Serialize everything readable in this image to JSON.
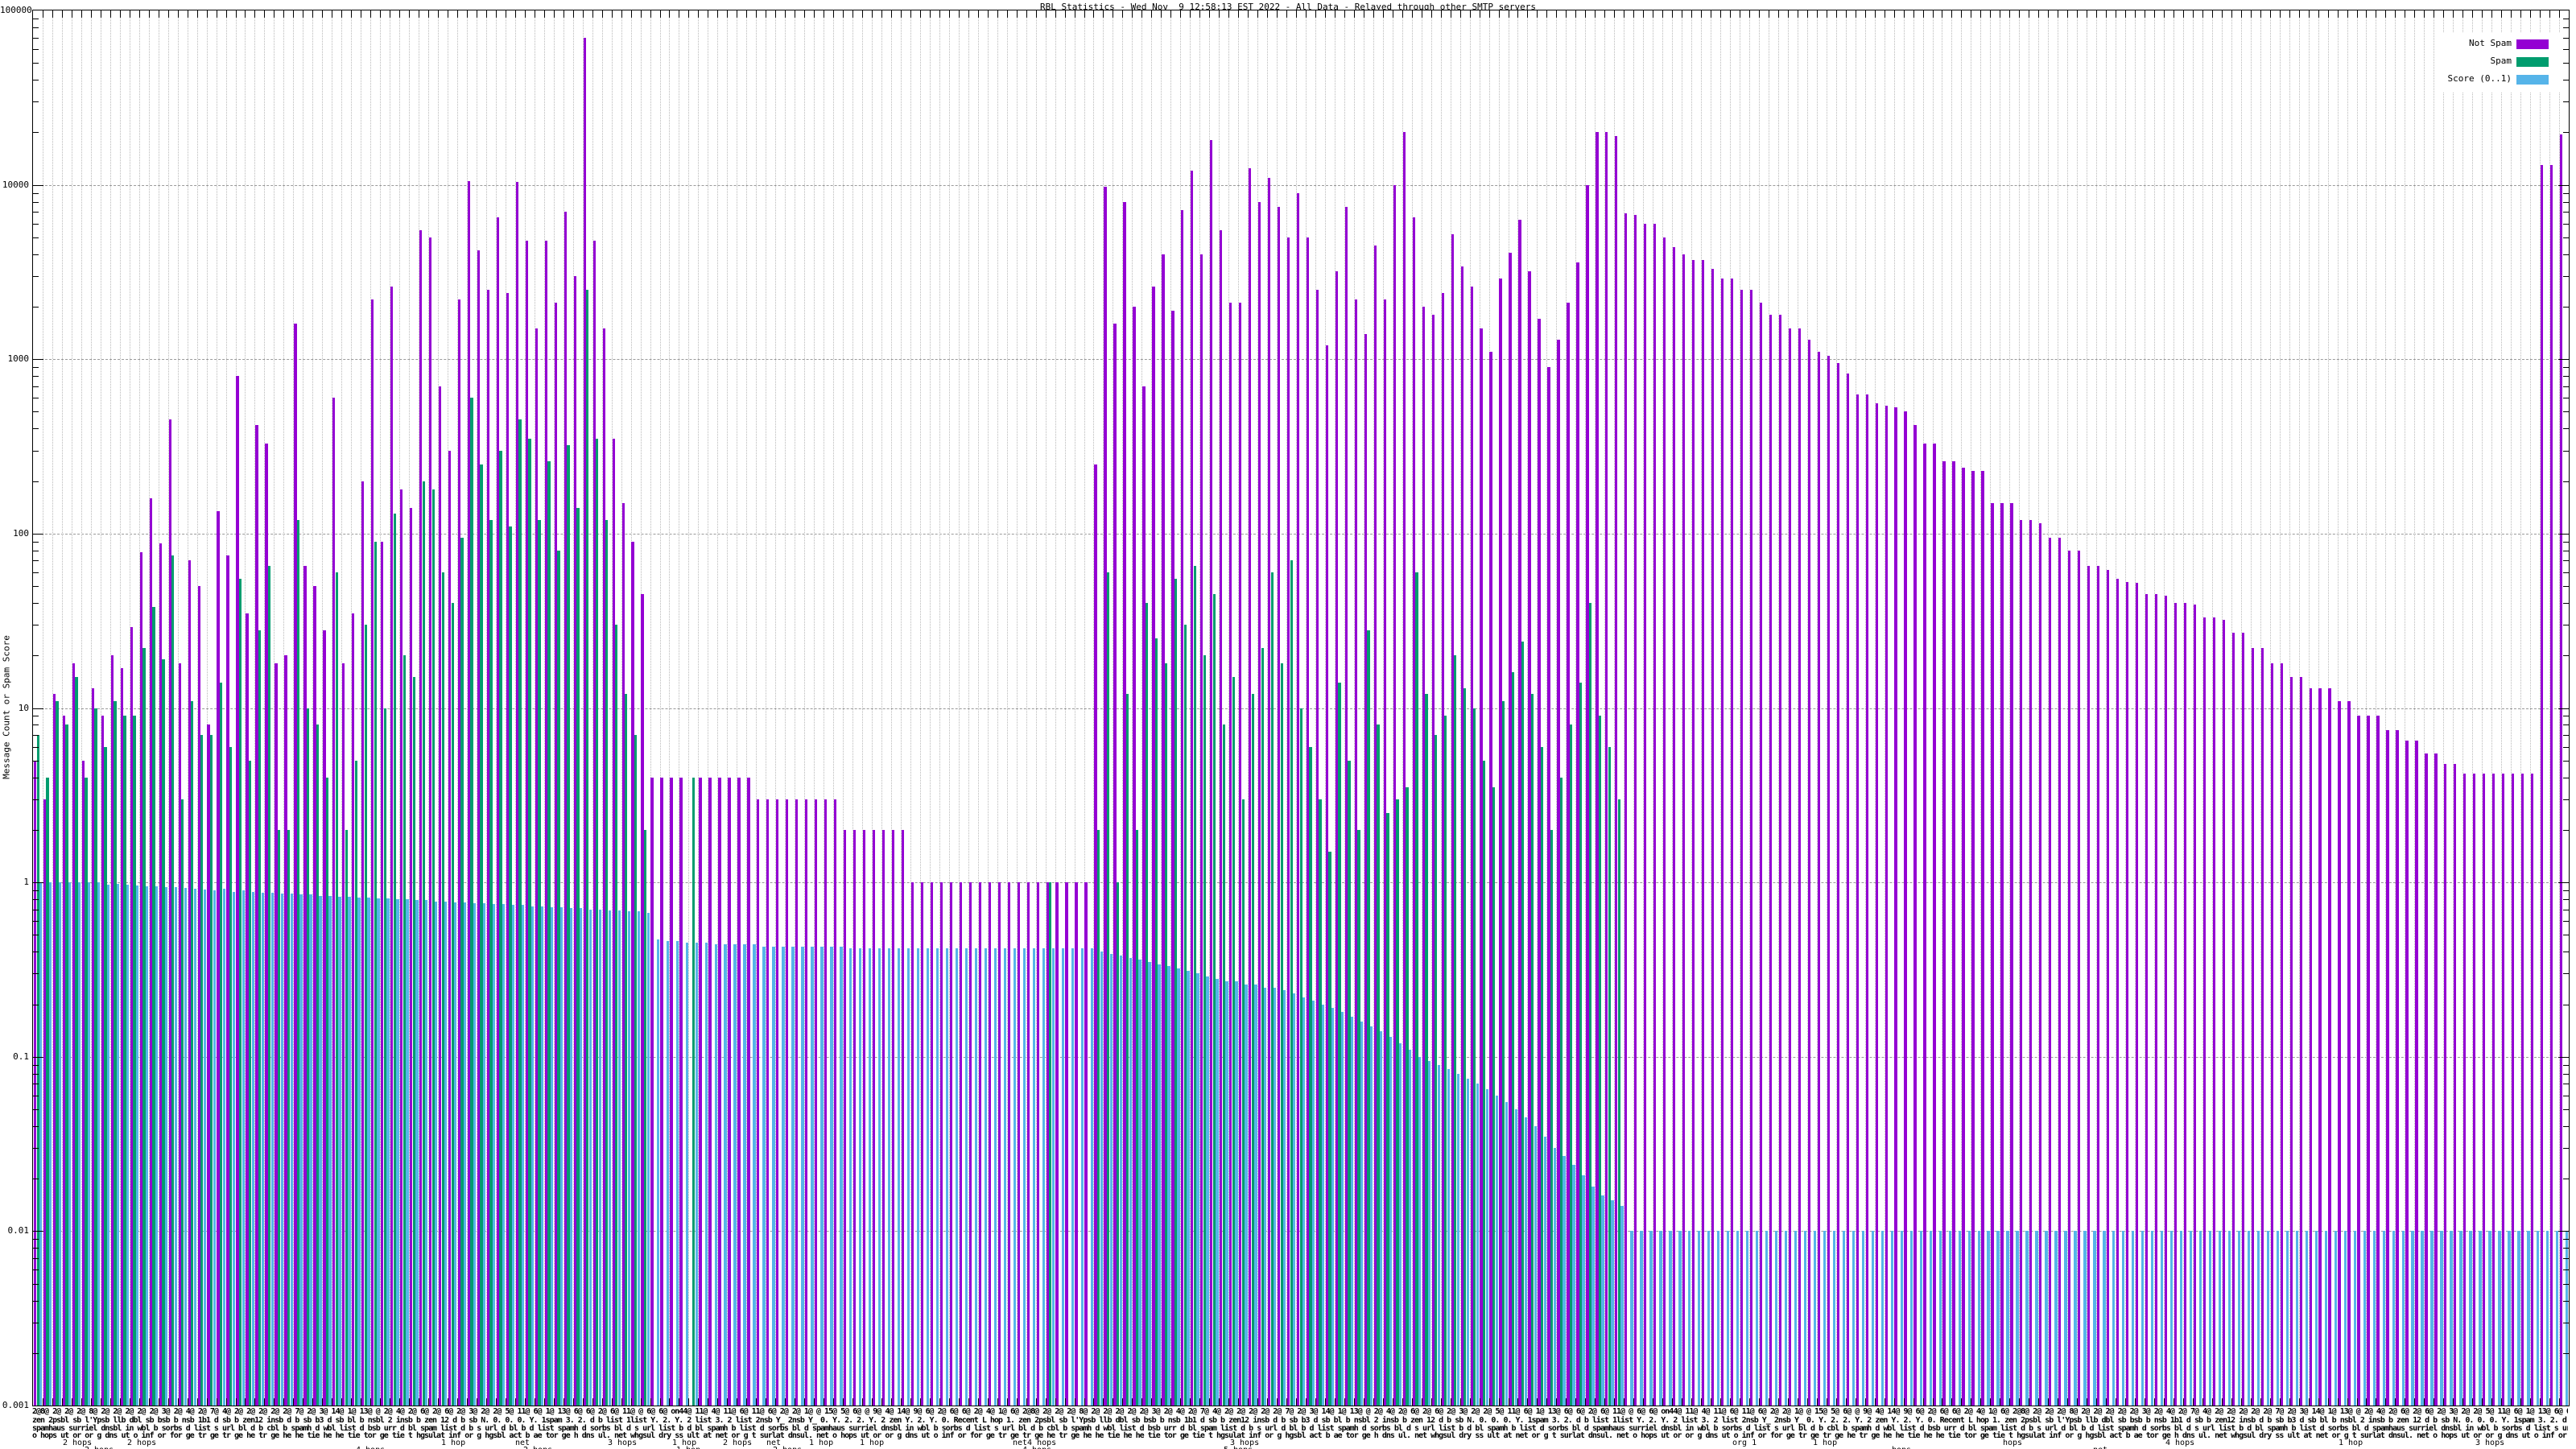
{
  "title": "RBL Statistics - Wed Nov  9 12:58:13 EST 2022 - All Data - Relayed through other SMTP servers",
  "y_axis": {
    "label": "Message Count or Spam Score",
    "ticks": [
      "100000",
      "10000",
      "1000",
      "100",
      "10",
      "1",
      "0.1",
      "0.01",
      "0.001"
    ],
    "min": 0.001,
    "max": 100000
  },
  "legend": {
    "items": [
      {
        "label": "Not Spam",
        "color": "#9400d3"
      },
      {
        "label": "Spam",
        "color": "#009c6e"
      },
      {
        "label": "Score (0..1)",
        "color": "#56b4e9"
      }
    ]
  },
  "x_axis": {
    "tick_label_rows": [
      "2@8@ 2@ 2@ 2@ 8@ 2@ 2@ 2@ 2@ 2@ 3@ 2@ 4@ 2@ 7@ 4@ 2@ 2@ 2@ 2@ 2@ 7@ 2@ 3@ 14@ 1@ 13@ @ 2@ 4@ 2@ 6@ 2@ 6@ 2@ 3@ 2@ 2@ 5@ 11@ 6@ 1@ 13@ 6@ 6@ 2@ 6@ 11@ @ 6@ 6@ on44@ 11@ 4@ 11@ 6@ 11@ 6@ 2@ 2@ 1@ @ 15@ 5@ 6@ @ 9@ 4@ 14@ 9@ 6@ 2@ 6@ 6@ 2@ 4@ 1@ 6@ ",
      "zen 2psbl sb l'Ypsb llb dbl sb bsb b nsb 1b1 d sb b zen12 insb d b sb b3 d sb bl b nsbl 2 insb b zen 12 d b sb N. 0. 0. 0. Y. 1spam 3. 2. d b list 1list Y. 2. Y. 2 list 3. 2 list 2nsb Y_ 2nsb Y_ 0. Y. 2. 2. Y. 2 zen Y. 2. Y. 0. Recent L hop 1. ",
      "spamhaus surriel dnsbl in wbl b sorbs d list s url bl d b cbl b spamh d wbl list d bsb urr d bl spam list d b s url d bl b d list spamh d sorbs bl d s url list b d bl spamh b list d sorbs bl d ",
      "o hops ut or or g dns ut o inf or for ge tr ge tr ge he tr ge he he tie he he tie tor ge tie t hgsulat inf or g hgsbl act b ae tor ge h dns ul. net whgsul dry ss ult at net or g t surlat dnsul. net "
    ],
    "hop_labels_row1": [
      {
        "text": "2 hops",
        "x": 78
      },
      {
        "text": "2 hops",
        "x": 158
      },
      {
        "text": "1 hop",
        "x": 548
      },
      {
        "text": "net",
        "x": 640
      },
      {
        "text": "3 hops",
        "x": 755
      },
      {
        "text": "1 hop",
        "x": 835
      },
      {
        "text": "2 hops",
        "x": 898
      },
      {
        "text": "net",
        "x": 952
      },
      {
        "text": "1 hop",
        "x": 1005
      },
      {
        "text": "1 hop",
        "x": 1068
      },
      {
        "text": "net4 hops",
        "x": 1258
      },
      {
        "text": "3 hops",
        "x": 1528
      },
      {
        "text": "org 1",
        "x": 2152
      },
      {
        "text": "1 hop",
        "x": 2252
      },
      {
        "text": "hops",
        "x": 2488
      },
      {
        "text": "4 hops",
        "x": 2690
      },
      {
        "text": "1 hop",
        "x": 2905
      },
      {
        "text": "3 hops",
        "x": 3075
      }
    ],
    "hop_labels_row2": [
      {
        "text": "2 hops",
        "x": 105
      },
      {
        "text": "4 hops",
        "x": 442
      },
      {
        "text": "2 hops",
        "x": 650
      },
      {
        "text": "1 hop",
        "x": 840
      },
      {
        "text": "2 hops",
        "x": 960
      },
      {
        "text": "4 hops",
        "x": 1270
      },
      {
        "text": "5 hops",
        "x": 1520
      },
      {
        "text": "hops",
        "x": 2350
      },
      {
        "text": "net",
        "x": 2600
      }
    ]
  },
  "chart_data": {
    "type": "bar",
    "log_scale": true,
    "ylim": [
      0.001,
      100000
    ],
    "ylabel": "Message Count or Spam Score",
    "title": "RBL Statistics - Wed Nov  9 12:58:13 EST 2022 - All Data - Relayed through other SMTP servers",
    "grid": true,
    "legend_position": "top-right",
    "group_count": 263,
    "series": [
      {
        "name": "Not Spam",
        "color": "#9400d3",
        "values": [
          5,
          3,
          12,
          9,
          18,
          5,
          13,
          9,
          20,
          17,
          29,
          78,
          160,
          88,
          450,
          18,
          70,
          50,
          8,
          135,
          75,
          800,
          35,
          420,
          330,
          18,
          20,
          1600,
          65,
          50,
          28,
          600,
          18,
          35,
          200,
          2200,
          90,
          2600,
          180,
          140,
          5500,
          5000,
          700,
          300,
          2200,
          10500,
          4200,
          2500,
          6500,
          2400,
          10400,
          4800,
          1500,
          4800,
          2100,
          7000,
          3000,
          70000,
          4800,
          1500,
          350,
          150,
          90,
          45,
          4,
          4,
          4,
          4,
          null,
          4,
          4,
          4,
          4,
          4,
          4,
          3,
          3,
          3,
          3,
          3,
          3,
          3,
          3,
          3,
          2,
          2,
          2,
          2,
          2,
          2,
          2,
          1,
          1,
          1,
          1,
          1,
          1,
          1,
          1,
          1,
          1,
          1,
          1,
          1,
          1,
          1,
          1,
          1,
          1,
          1,
          250,
          9800,
          1600,
          8000,
          2000,
          700,
          2600,
          4000,
          1900,
          7200,
          12000,
          4000,
          18000,
          5500,
          2100,
          2100,
          12500,
          8000,
          11000,
          7500,
          5000,
          9000,
          5000,
          2500,
          1200,
          3200,
          7500,
          2200,
          1400,
          4500,
          2200,
          10000,
          20000,
          6500,
          2000,
          1800,
          2400,
          5200,
          3400,
          2600,
          1500,
          1100,
          2900,
          4100,
          6300,
          3200,
          1700,
          900,
          1300,
          2100,
          3600,
          10000,
          20000,
          20000,
          19000,
          6900,
          6700,
          6000,
          6000,
          5000,
          4400,
          4000,
          3700,
          3700,
          3300,
          2900,
          2900,
          2500,
          2500,
          2100,
          1800,
          1800,
          1500,
          1500,
          1300,
          1100,
          1050,
          950,
          830,
          630,
          630,
          560,
          540,
          530,
          500,
          420,
          330,
          330,
          260,
          260,
          240,
          230,
          230,
          150,
          150,
          150,
          120,
          120,
          115,
          95,
          95,
          80,
          80,
          65,
          65,
          62,
          55,
          53,
          52,
          45,
          45,
          44,
          40,
          40,
          39,
          33,
          33,
          32,
          27,
          27,
          22,
          22,
          18,
          18,
          15,
          15,
          13,
          13,
          13,
          11,
          11,
          9,
          9,
          9,
          7.5,
          7.5,
          6.5,
          6.5,
          5.5,
          5.5,
          4.8,
          4.8,
          4.2,
          4.2,
          4.2,
          4.2,
          4.2,
          4.2,
          4.2,
          4.2,
          13000,
          13000,
          19500
        ]
      },
      {
        "name": "Spam",
        "color": "#009c6e",
        "values": [
          7,
          4,
          11,
          8,
          15,
          4,
          10,
          6,
          11,
          9,
          9,
          22,
          38,
          19,
          75,
          3,
          11,
          7,
          7,
          14,
          6,
          55,
          5,
          28,
          65,
          2,
          2,
          120,
          10,
          8,
          4,
          60,
          2,
          5,
          30,
          90,
          10,
          130,
          20,
          15,
          200,
          180,
          60,
          40,
          95,
          600,
          250,
          120,
          300,
          110,
          450,
          350,
          120,
          260,
          80,
          320,
          140,
          2500,
          350,
          120,
          30,
          12,
          7,
          2,
          null,
          null,
          null,
          null,
          4,
          null,
          null,
          null,
          null,
          null,
          null,
          null,
          null,
          null,
          null,
          null,
          null,
          null,
          null,
          null,
          null,
          null,
          null,
          null,
          null,
          null,
          null,
          null,
          null,
          null,
          null,
          null,
          null,
          null,
          null,
          null,
          null,
          null,
          null,
          null,
          null,
          1,
          null,
          null,
          null,
          null,
          2,
          60,
          1,
          12,
          2,
          40,
          25,
          18,
          55,
          30,
          65,
          20,
          45,
          8,
          15,
          3,
          12,
          22,
          60,
          18,
          70,
          10,
          6,
          3,
          1.5,
          14,
          5,
          2,
          28,
          8,
          2.5,
          3,
          3.5,
          60,
          12,
          7,
          9,
          20,
          13,
          10,
          5,
          3.5,
          11,
          16,
          24,
          12,
          6,
          2,
          4,
          8,
          14,
          40,
          9,
          6,
          3,
          null,
          null,
          null,
          null,
          null,
          null,
          null,
          null,
          null,
          null,
          null,
          null,
          null,
          null,
          null,
          null,
          null,
          null,
          null,
          null,
          null,
          null,
          null,
          null,
          null,
          null,
          null,
          null,
          null,
          null,
          null,
          null,
          null,
          null,
          null,
          null,
          null,
          null,
          null,
          null,
          null,
          null,
          null,
          null,
          null,
          null,
          null,
          null,
          null,
          null,
          null,
          null,
          null,
          null,
          null,
          null,
          null,
          null,
          null,
          null,
          null,
          null,
          null,
          null,
          null,
          null,
          null,
          null,
          null,
          null,
          null,
          null,
          null,
          null,
          null,
          null,
          null,
          null,
          null,
          null,
          null,
          null,
          null,
          null,
          null,
          null,
          null,
          null,
          null,
          null,
          null,
          null,
          null,
          null,
          null,
          null,
          null,
          null
        ]
      },
      {
        "name": "Score (0..1)",
        "color": "#56b4e9",
        "values": [
          1,
          1,
          1,
          1,
          1,
          1,
          1,
          0.97,
          0.98,
          0.97,
          0.96,
          0.95,
          0.95,
          0.94,
          0.94,
          0.93,
          0.92,
          0.91,
          0.9,
          0.92,
          0.88,
          0.9,
          0.88,
          0.87,
          0.87,
          0.86,
          0.86,
          0.85,
          0.85,
          0.84,
          0.84,
          0.83,
          0.83,
          0.82,
          0.82,
          0.81,
          0.81,
          0.8,
          0.8,
          0.79,
          0.79,
          0.78,
          0.78,
          0.77,
          0.77,
          0.76,
          0.76,
          0.75,
          0.75,
          0.74,
          0.74,
          0.73,
          0.73,
          0.72,
          0.72,
          0.71,
          0.71,
          0.7,
          0.7,
          0.69,
          0.69,
          0.68,
          0.68,
          0.67,
          0.47,
          0.46,
          0.46,
          0.45,
          0.45,
          0.45,
          0.44,
          0.44,
          0.44,
          0.44,
          0.44,
          0.43,
          0.43,
          0.43,
          0.43,
          0.43,
          0.43,
          0.43,
          0.43,
          0.43,
          0.42,
          0.42,
          0.42,
          0.42,
          0.42,
          0.42,
          0.42,
          0.42,
          0.42,
          0.42,
          0.42,
          0.42,
          0.42,
          0.42,
          0.42,
          0.42,
          0.42,
          0.42,
          0.42,
          0.42,
          0.42,
          0.42,
          0.42,
          0.42,
          0.42,
          0.42,
          0.4,
          0.39,
          0.38,
          0.37,
          0.36,
          0.35,
          0.34,
          0.33,
          0.32,
          0.31,
          0.3,
          0.29,
          0.28,
          0.27,
          0.27,
          0.26,
          0.26,
          0.25,
          0.25,
          0.24,
          0.23,
          0.22,
          0.21,
          0.2,
          0.19,
          0.18,
          0.17,
          0.16,
          0.15,
          0.14,
          0.13,
          0.12,
          0.11,
          0.1,
          0.095,
          0.09,
          0.085,
          0.08,
          0.075,
          0.07,
          0.065,
          0.06,
          0.055,
          0.05,
          0.045,
          0.04,
          0.035,
          0.03,
          0.027,
          0.024,
          0.021,
          0.018,
          0.016,
          0.015,
          0.014,
          0.01,
          0.01,
          0.01,
          0.01,
          0.01,
          0.01,
          0.01,
          0.01,
          0.01,
          0.01,
          0.01,
          0.01,
          0.01,
          0.01,
          0.01,
          0.01,
          0.01,
          0.01,
          0.01,
          0.01,
          0.01,
          0.01,
          0.01,
          0.01,
          0.01,
          0.01,
          0.01,
          0.01,
          0.01,
          0.01,
          0.01,
          0.01,
          0.01,
          0.01,
          0.01,
          0.01,
          0.01,
          0.01,
          0.01,
          0.01,
          0.01,
          0.01,
          0.01,
          0.01,
          0.01,
          0.01,
          0.01,
          0.01,
          0.01,
          0.01,
          0.01,
          0.01,
          0.01,
          0.01,
          0.01,
          0.01,
          0.01,
          0.01,
          0.01,
          0.01,
          0.01,
          0.01,
          0.01,
          0.01,
          0.01,
          0.01,
          0.01,
          0.01,
          0.01,
          0.01,
          0.01,
          0.01,
          0.01,
          0.01,
          0.01,
          0.01,
          0.01,
          0.01,
          0.01,
          0.01,
          0.01,
          0.01,
          0.01,
          0.01,
          0.01,
          0.01,
          0.01,
          0.01,
          0.01,
          0.01,
          0.01,
          0.01,
          0.01,
          0.01,
          0.01,
          0.01,
          0.01,
          0.01
        ]
      }
    ]
  }
}
